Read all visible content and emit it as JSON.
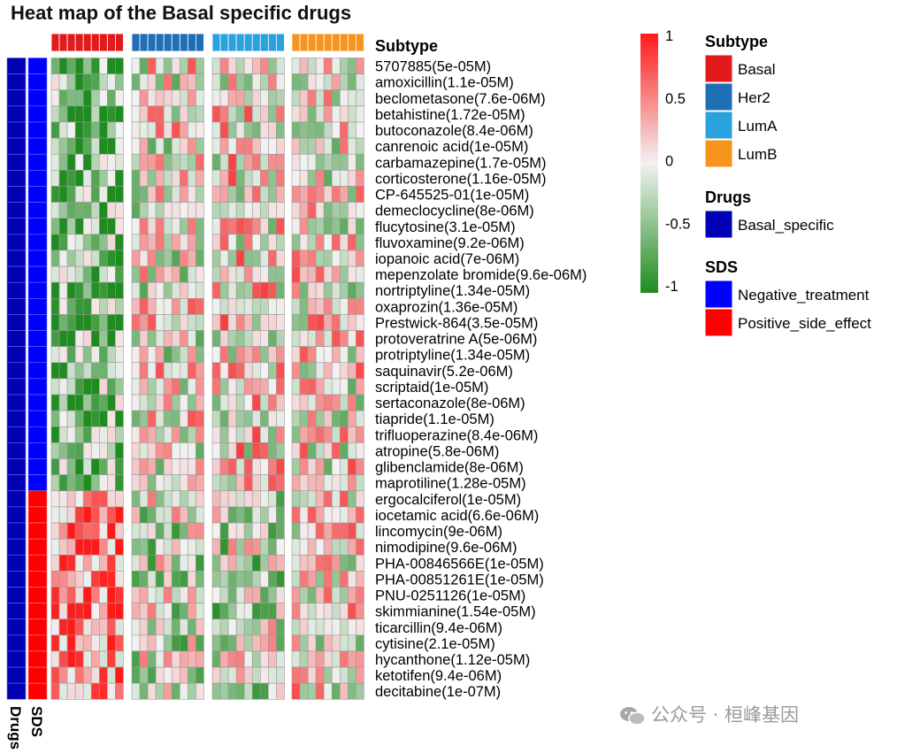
{
  "title": "Heat map of the Basal specific drugs",
  "chart_data": {
    "type": "heatmap",
    "title": "Heat map of the Basal specific drugs",
    "rows": [
      "5707885(5e-05M)",
      "amoxicillin(1.1e-05M)",
      "beclometasone(7.6e-06M)",
      "betahistine(1.72e-05M)",
      "butoconazole(8.4e-06M)",
      "canrenoic acid(1e-05M)",
      "carbamazepine(1.7e-05M)",
      "corticosterone(1.16e-05M)",
      "CP-645525-01(1e-05M)",
      "demeclocycline(8e-06M)",
      "flucytosine(3.1e-05M)",
      "fluvoxamine(9.2e-06M)",
      "iopanoic acid(7e-06M)",
      "mepenzolate bromide(9.6e-06M)",
      "nortriptyline(1.34e-05M)",
      "oxaprozin(1.36e-05M)",
      "Prestwick-864(3.5e-05M)",
      "protoveratrine A(5e-06M)",
      "protriptyline(1.34e-05M)",
      "saquinavir(5.2e-06M)",
      "scriptaid(1e-05M)",
      "sertaconazole(8e-06M)",
      "tiapride(1.1e-05M)",
      "trifluoperazine(8.4e-06M)",
      "atropine(5.8e-06M)",
      "glibenclamide(8e-06M)",
      "maprotiline(1.28e-05M)",
      "ergocalciferol(1e-05M)",
      "iocetamic acid(6.6e-06M)",
      "lincomycin(9e-06M)",
      "nimodipine(9.6e-06M)",
      "PHA-00846566E(1e-05M)",
      "PHA-00851261E(1e-05M)",
      "PNU-0251126(1e-05M)",
      "skimmianine(1.54e-05M)",
      "ticarcillin(9.4e-06M)",
      "cytisine(2.1e-05M)",
      "hycanthone(1.12e-05M)",
      "ketotifen(9.4e-06M)",
      "decitabine(1e-07M)"
    ],
    "column_groups": [
      {
        "subtype": "Basal",
        "n": 9
      },
      {
        "subtype": "Her2",
        "n": 9
      },
      {
        "subtype": "LumA",
        "n": 9
      },
      {
        "subtype": "LumB",
        "n": 9
      }
    ],
    "row_annotations": {
      "Drugs": {
        "label": "Drugs",
        "values": {
          "Basal_specific": 40
        }
      },
      "SDS": {
        "label": "SDS",
        "negative_count": 27,
        "positive_count": 13
      }
    },
    "column_annotation_label": "Subtype",
    "color_scale": {
      "min": -1,
      "max": 1,
      "ticks": [
        "1",
        "0.5",
        "0",
        "-0.5",
        "-1"
      ],
      "low": "#1e8c1e",
      "mid": "#f2f2f2",
      "high": "#ff1a1a"
    },
    "legends": [
      {
        "title": "Subtype",
        "items": [
          {
            "label": "Basal",
            "color": "#e31a1c"
          },
          {
            "label": "Her2",
            "color": "#1f6fb4"
          },
          {
            "label": "LumA",
            "color": "#2aa2de"
          },
          {
            "label": "LumB",
            "color": "#f7941d"
          }
        ]
      },
      {
        "title": "Drugs",
        "items": [
          {
            "label": "Basal_specific",
            "color": "#0000b4"
          }
        ]
      },
      {
        "title": "SDS",
        "items": [
          {
            "label": "Negative_treatment",
            "color": "#0000ff"
          },
          {
            "label": "Positive_side_effect",
            "color": "#ff0000"
          }
        ]
      }
    ],
    "pattern": {
      "negative_rows": {
        "Basal": -0.6,
        "Her2": 0.0,
        "LumA": 0.1,
        "LumB": 0.05
      },
      "positive_rows": {
        "Basal": 0.6,
        "Her2": -0.15,
        "LumA": -0.2,
        "LumB": 0.05
      }
    }
  },
  "watermark": {
    "text": "公众号 · 桓峰基因",
    "icon": "wechat-icon"
  }
}
